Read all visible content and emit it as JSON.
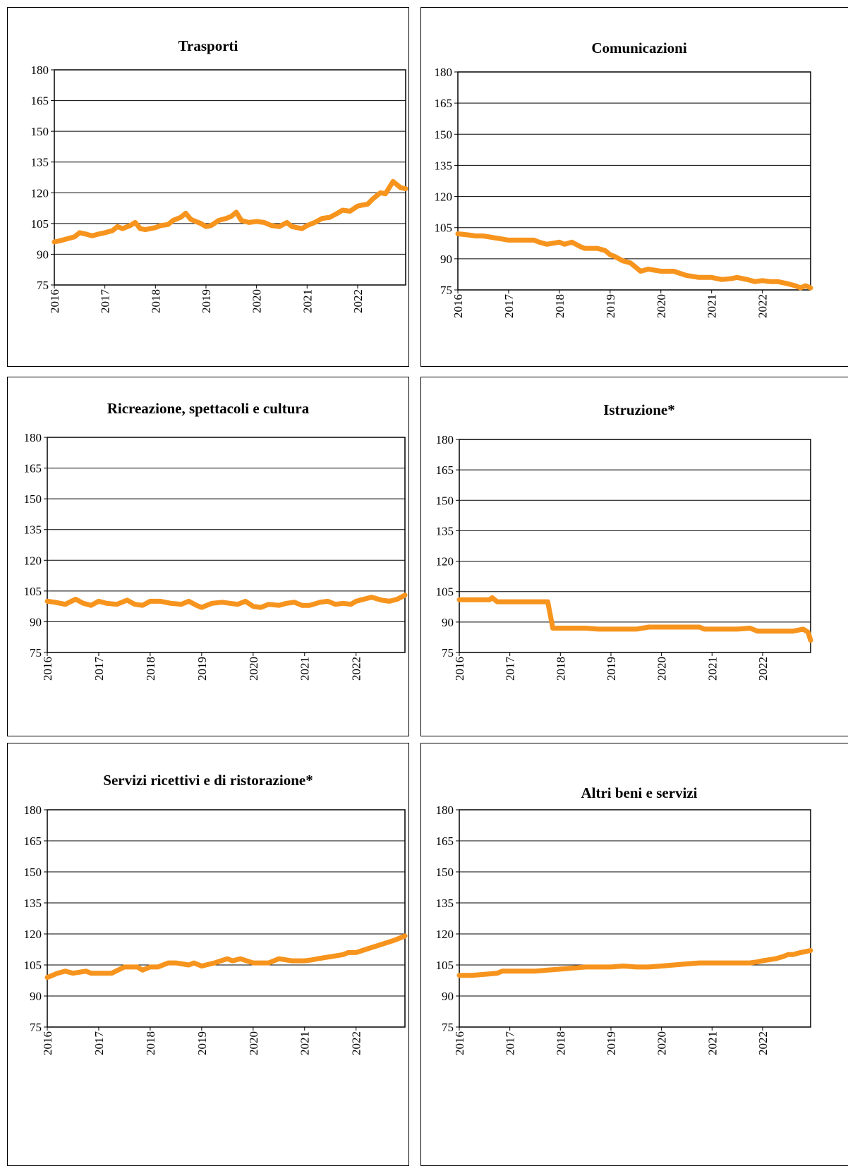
{
  "page": {
    "background": "#ffffff"
  },
  "chart_data": [
    {
      "type": "line",
      "title": "Trasporti",
      "xlabel": "",
      "ylabel": "",
      "ylim": [
        75,
        180
      ],
      "yticks": [
        75,
        90,
        105,
        120,
        135,
        150,
        165,
        180
      ],
      "xlim": [
        2016,
        2022.95
      ],
      "xticks": [
        "2016",
        "2017",
        "2018",
        "2019",
        "2020",
        "2021",
        "2022"
      ],
      "grid": true,
      "legend": "none",
      "color": "#f7941d",
      "series": [
        {
          "x": [
            2016,
            2016.1,
            2016.25,
            2016.4,
            2016.5,
            2016.6,
            2016.75,
            2016.9,
            2017,
            2017.15,
            2017.25,
            2017.35,
            2017.5,
            2017.6,
            2017.7,
            2017.8,
            2017.9,
            2018,
            2018.1,
            2018.25,
            2018.35,
            2018.5,
            2018.6,
            2018.7,
            2018.8,
            2018.9,
            2019,
            2019.1,
            2019.25,
            2019.4,
            2019.5,
            2019.6,
            2019.7,
            2019.85,
            2020,
            2020.15,
            2020.3,
            2020.45,
            2020.6,
            2020.7,
            2020.8,
            2020.9,
            2021,
            2021.15,
            2021.3,
            2021.45,
            2021.6,
            2021.7,
            2021.85,
            2022,
            2022.1,
            2022.2,
            2022.3,
            2022.45,
            2022.55,
            2022.7,
            2022.85,
            2022.95
          ],
          "values": [
            96,
            96.5,
            97.5,
            98.5,
            100.5,
            100,
            99,
            100,
            100.5,
            101.5,
            103.5,
            102.5,
            104,
            105.5,
            102.5,
            102,
            102.5,
            103,
            104,
            104.5,
            106.5,
            108,
            110,
            107,
            106,
            105,
            103.5,
            104,
            106.5,
            107.5,
            108.5,
            110.5,
            106.5,
            105.5,
            106,
            105.5,
            104,
            103.5,
            105.5,
            103.5,
            103,
            102.5,
            104,
            105.5,
            107.5,
            108,
            110,
            111.5,
            111,
            113.5,
            114,
            114.5,
            117,
            120,
            119.5,
            125.5,
            122.5,
            122
          ]
        }
      ]
    },
    {
      "type": "line",
      "title": "Comunicazioni",
      "xlabel": "",
      "ylabel": "",
      "ylim": [
        75,
        180
      ],
      "yticks": [
        75,
        90,
        105,
        120,
        135,
        150,
        165,
        180
      ],
      "xlim": [
        2016,
        2022.95
      ],
      "xticks": [
        "2016",
        "2017",
        "2018",
        "2019",
        "2020",
        "2021",
        "2022"
      ],
      "grid": true,
      "legend": "none",
      "color": "#f7941d",
      "series": [
        {
          "x": [
            2016,
            2016.2,
            2016.35,
            2016.5,
            2016.75,
            2017,
            2017.25,
            2017.5,
            2017.6,
            2017.75,
            2018,
            2018.1,
            2018.25,
            2018.4,
            2018.5,
            2018.75,
            2018.9,
            2019,
            2019.1,
            2019.25,
            2019.4,
            2019.5,
            2019.6,
            2019.75,
            2020,
            2020.25,
            2020.5,
            2020.75,
            2021,
            2021.2,
            2021.4,
            2021.5,
            2021.7,
            2021.85,
            2022,
            2022.15,
            2022.3,
            2022.5,
            2022.65,
            2022.75,
            2022.85,
            2022.95
          ],
          "values": [
            102,
            101.5,
            101,
            101,
            100,
            99,
            99,
            99,
            98,
            97,
            98,
            97,
            98,
            96,
            95,
            95,
            94,
            92,
            91,
            89,
            88,
            86,
            84,
            85,
            84,
            84,
            82,
            81,
            81,
            80,
            80.5,
            81,
            80,
            79,
            79.5,
            79,
            79,
            78,
            77,
            76,
            77,
            76
          ]
        }
      ]
    },
    {
      "type": "line",
      "title": "Ricreazione, spettacoli e cultura",
      "xlabel": "",
      "ylabel": "",
      "ylim": [
        75,
        180
      ],
      "yticks": [
        75,
        90,
        105,
        120,
        135,
        150,
        165,
        180
      ],
      "xlim": [
        2016,
        2022.95
      ],
      "xticks": [
        "2016",
        "2017",
        "2018",
        "2019",
        "2020",
        "2021",
        "2022"
      ],
      "grid": true,
      "legend": "none",
      "color": "#f7941d",
      "series": [
        {
          "x": [
            2016,
            2016.15,
            2016.35,
            2016.55,
            2016.7,
            2016.85,
            2017,
            2017.15,
            2017.35,
            2017.55,
            2017.7,
            2017.85,
            2018,
            2018.2,
            2018.4,
            2018.6,
            2018.75,
            2018.9,
            2019,
            2019.2,
            2019.4,
            2019.55,
            2019.7,
            2019.85,
            2020,
            2020.15,
            2020.3,
            2020.5,
            2020.65,
            2020.8,
            2020.95,
            2021.1,
            2021.3,
            2021.45,
            2021.6,
            2021.75,
            2021.9,
            2022,
            2022.15,
            2022.3,
            2022.5,
            2022.65,
            2022.8,
            2022.95
          ],
          "values": [
            100,
            99.5,
            98.5,
            101,
            99,
            98,
            100,
            99,
            98.5,
            100.5,
            98.5,
            98,
            100,
            100,
            99,
            98.5,
            100,
            98,
            97,
            99,
            99.5,
            99,
            98.5,
            100,
            97.5,
            97,
            98.5,
            98,
            99,
            99.5,
            98,
            98,
            99.5,
            100,
            98.5,
            99,
            98.5,
            100,
            101,
            102,
            100.5,
            100,
            101,
            103
          ]
        }
      ]
    },
    {
      "type": "line",
      "title": "Istruzione*",
      "xlabel": "",
      "ylabel": "",
      "ylim": [
        75,
        180
      ],
      "yticks": [
        75,
        90,
        105,
        120,
        135,
        150,
        165,
        180
      ],
      "xlim": [
        2016,
        2022.95
      ],
      "xticks": [
        "2016",
        "2017",
        "2018",
        "2019",
        "2020",
        "2021",
        "2022"
      ],
      "grid": true,
      "legend": "none",
      "color": "#f7941d",
      "series": [
        {
          "x": [
            2016,
            2016.6,
            2016.65,
            2016.75,
            2017.5,
            2017.65,
            2017.75,
            2017.85,
            2018.5,
            2018.75,
            2019.5,
            2019.75,
            2020,
            2020.5,
            2020.75,
            2020.85,
            2021.5,
            2021.75,
            2021.9,
            2022.6,
            2022.8,
            2022.9,
            2022.95
          ],
          "values": [
            101,
            101,
            102,
            100,
            100,
            100,
            100,
            87,
            87,
            86.5,
            86.5,
            87.5,
            87.5,
            87.5,
            87.5,
            86.5,
            86.5,
            87,
            85.5,
            85.5,
            86.5,
            85,
            81
          ]
        }
      ]
    },
    {
      "type": "line",
      "title": "Servizi ricettivi e di ristorazione*",
      "xlabel": "",
      "ylabel": "",
      "ylim": [
        75,
        180
      ],
      "yticks": [
        75,
        90,
        105,
        120,
        135,
        150,
        165,
        180
      ],
      "xlim": [
        2016,
        2022.95
      ],
      "xticks": [
        "2016",
        "2017",
        "2018",
        "2019",
        "2020",
        "2021",
        "2022"
      ],
      "grid": true,
      "legend": "none",
      "color": "#f7941d",
      "series": [
        {
          "x": [
            2016,
            2016.1,
            2016.2,
            2016.35,
            2016.5,
            2016.75,
            2016.85,
            2017,
            2017.25,
            2017.5,
            2017.75,
            2017.85,
            2018,
            2018.15,
            2018.35,
            2018.5,
            2018.75,
            2018.85,
            2019,
            2019.25,
            2019.5,
            2019.6,
            2019.75,
            2020,
            2020.15,
            2020.3,
            2020.5,
            2020.75,
            2021,
            2021.15,
            2021.25,
            2021.5,
            2021.75,
            2021.85,
            2022,
            2022.25,
            2022.5,
            2022.75,
            2022.85,
            2022.95
          ],
          "values": [
            99,
            100,
            101,
            102,
            101,
            102,
            101,
            101,
            101,
            104,
            104,
            102.5,
            104,
            104,
            106,
            106,
            105,
            106,
            104.5,
            106,
            108,
            107,
            108,
            106,
            106,
            106,
            108,
            107,
            107,
            107.5,
            108,
            109,
            110,
            111,
            111,
            113,
            115,
            117,
            118,
            119
          ]
        }
      ]
    },
    {
      "type": "line",
      "title": "Altri beni e servizi",
      "xlabel": "",
      "ylabel": "",
      "ylim": [
        75,
        180
      ],
      "yticks": [
        75,
        90,
        105,
        120,
        135,
        150,
        165,
        180
      ],
      "xlim": [
        2016,
        2022.95
      ],
      "xticks": [
        "2016",
        "2017",
        "2018",
        "2019",
        "2020",
        "2021",
        "2022"
      ],
      "grid": true,
      "legend": "none",
      "color": "#f7941d",
      "series": [
        {
          "x": [
            2016,
            2016.25,
            2016.5,
            2016.75,
            2016.85,
            2017,
            2017.25,
            2017.5,
            2017.75,
            2018,
            2018.25,
            2018.5,
            2018.75,
            2019,
            2019.25,
            2019.5,
            2019.75,
            2020,
            2020.25,
            2020.5,
            2020.75,
            2021,
            2021.25,
            2021.5,
            2021.75,
            2021.9,
            2022,
            2022.25,
            2022.4,
            2022.5,
            2022.6,
            2022.75,
            2022.95
          ],
          "values": [
            100,
            100,
            100.5,
            101,
            102,
            102,
            102,
            102,
            102.5,
            103,
            103.5,
            104,
            104,
            104,
            104.5,
            104,
            104,
            104.5,
            105,
            105.5,
            106,
            106,
            106,
            106,
            106,
            106.5,
            107,
            108,
            109,
            110,
            110,
            111,
            112
          ]
        }
      ]
    }
  ]
}
